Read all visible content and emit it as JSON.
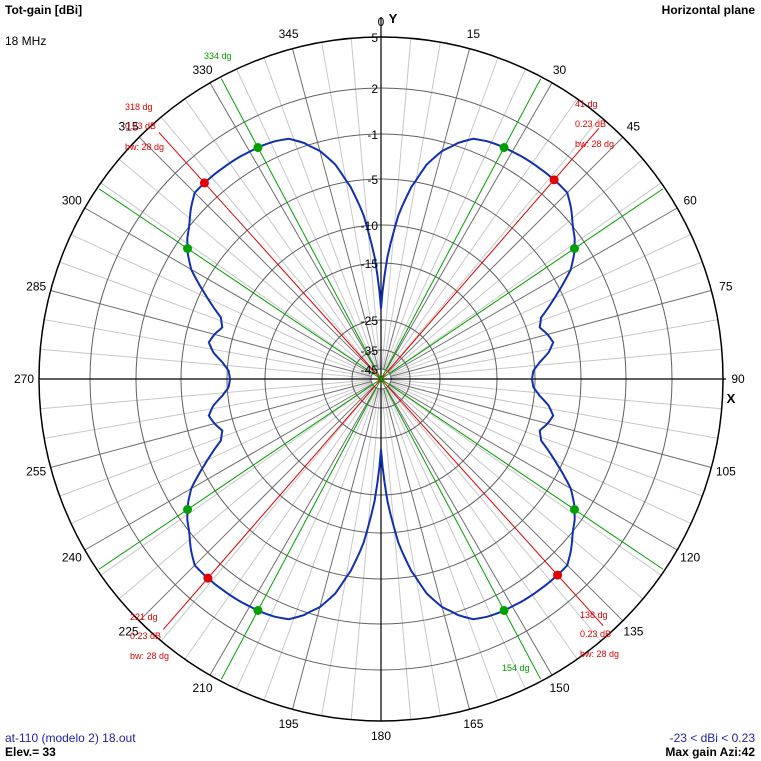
{
  "header": {
    "title": "Tot-gain [dBi]",
    "frequency": "18 MHz",
    "plane": "Horizontal plane"
  },
  "footer": {
    "file": "at-110 (modelo 2) 18.out",
    "elevation": "Elev.= 33",
    "range": "-23 < dBi < 0.23",
    "max_gain": "Max gain Azi:42"
  },
  "chart_data": {
    "type": "polar",
    "axes": {
      "y_label": "Y",
      "x_label": "X"
    },
    "angle_ticks": [
      "0",
      "15",
      "30",
      "45",
      "60",
      "75",
      "90",
      "105",
      "120",
      "135",
      "150",
      "165",
      "180",
      "195",
      "210",
      "225",
      "240",
      "255",
      "270",
      "285",
      "300",
      "315",
      "330",
      "345"
    ],
    "radial_ticks": [
      {
        "label": "5",
        "value": 5
      },
      {
        "label": "2",
        "value": 2
      },
      {
        "label": "-1",
        "value": -1
      },
      {
        "label": "-5",
        "value": -5
      },
      {
        "label": "-10",
        "value": -10
      },
      {
        "label": "-15",
        "value": -15
      },
      {
        "label": "-25",
        "value": -25
      },
      {
        "label": "-35",
        "value": -35
      },
      {
        "label": "-45",
        "value": -45
      }
    ],
    "series": [
      {
        "color": "#1030b0",
        "pattern_azimuth_deg": [
          0,
          3,
          6,
          9,
          12,
          15,
          18,
          21,
          24,
          27,
          30,
          33,
          36,
          39,
          42,
          45,
          48,
          51,
          54,
          57,
          60,
          63,
          66,
          69,
          72,
          75,
          78,
          81,
          84,
          87,
          90
        ],
        "pattern_gain_dbi": [
          -23,
          -14.2,
          -8.9,
          -5.6,
          -3.3,
          -1.8,
          -0.8,
          -0.2,
          0.0,
          0.1,
          0.15,
          0.2,
          0.22,
          0.23,
          0.23,
          0.2,
          -0.3,
          -0.9,
          -1.5,
          -2.3,
          -3.3,
          -4.8,
          -6.5,
          -8.1,
          -8.6,
          -8.0,
          -7.6,
          -8.3,
          -9.4,
          -10.2,
          -10.4
        ]
      }
    ],
    "beam_markers": [
      {
        "angle": 41,
        "label": "41 dg",
        "gain": "0.23 dB",
        "bw": "bw: 28 dg"
      },
      {
        "angle": 318,
        "label": "318 dg",
        "gain": "0.23 dB",
        "bw": "bw: 28 dg"
      },
      {
        "angle": 138,
        "label": "138 dg",
        "gain": "0.23 dB",
        "bw": "bw: 28 dg"
      },
      {
        "angle": 221,
        "label": "221 dg",
        "gain": "0.23 dB",
        "bw": "bw: 28 dg"
      }
    ],
    "bw_markers": [
      {
        "angle": 334,
        "label": "334 dg"
      },
      {
        "angle": 154,
        "label": "154 dg"
      }
    ],
    "half_power_angles": [
      28,
      56,
      304,
      332,
      124,
      152,
      208,
      236
    ],
    "colors": {
      "pattern": "#1030b0",
      "beam": "#e00000",
      "bw": "#00a000",
      "grid": "#000000"
    }
  }
}
